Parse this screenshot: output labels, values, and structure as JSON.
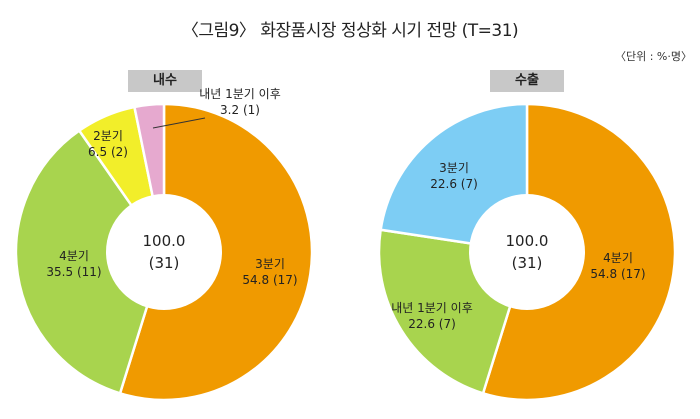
{
  "title": "〈그림9〉 화장품시장 정상화 시기 전망 (T=31)",
  "unit_note": "〈단위 : %·명〉",
  "chart_data": [
    {
      "type": "pie",
      "name": "내수",
      "center_label": {
        "line1": "100.0",
        "line2": "(31)"
      },
      "slices": [
        {
          "label": "3분기",
          "value": 54.8,
          "count": "(17)",
          "color": "#f09a00"
        },
        {
          "label": "4분기",
          "value": 35.5,
          "count": "(11)",
          "color": "#a8d44e"
        },
        {
          "label": "2분기",
          "value": 6.5,
          "count": "(2)",
          "color": "#f2ee2a"
        },
        {
          "label": "내년 1분기 이후",
          "value": 3.2,
          "count": "(1)",
          "color": "#e6a9cf"
        }
      ]
    },
    {
      "type": "pie",
      "name": "수출",
      "center_label": {
        "line1": "100.0",
        "line2": "(31)"
      },
      "slices": [
        {
          "label": "4분기",
          "value": 54.8,
          "count": "(17)",
          "color": "#f09a00"
        },
        {
          "label": "내년 1분기 이후",
          "value": 22.6,
          "count": "(7)",
          "color": "#a8d44e"
        },
        {
          "label": "3분기",
          "value": 22.6,
          "count": "(7)",
          "color": "#7dcdf4"
        }
      ]
    }
  ]
}
